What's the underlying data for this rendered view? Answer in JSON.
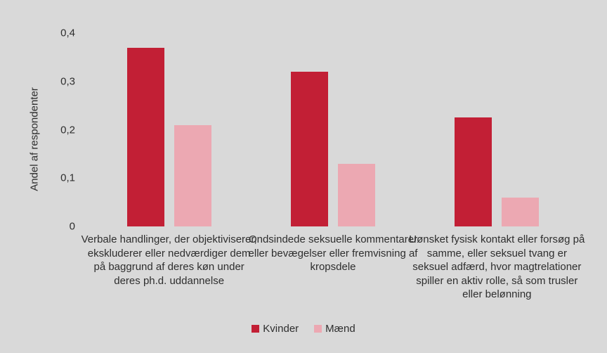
{
  "background_color": "#d9d9d9",
  "text_color": "#2e2e2e",
  "chart_data": {
    "type": "bar",
    "title": "",
    "xlabel": "",
    "ylabel": "Andel af respondenter",
    "ylim": [
      0,
      0.4
    ],
    "grid": false,
    "legend_position": "bottom",
    "yticks": [
      {
        "value": 0,
        "label": "0"
      },
      {
        "value": 0.1,
        "label": "0,1"
      },
      {
        "value": 0.2,
        "label": "0,2"
      },
      {
        "value": 0.3,
        "label": "0,3"
      },
      {
        "value": 0.4,
        "label": "0,4"
      }
    ],
    "categories": [
      "Verbale handlinger, der objektiviserer, ekskluderer eller nedværdiger dem på baggrund af deres køn under deres ph.d. uddannelse",
      "Ondsindede seksuelle kommentarer eller bevægelser eller fremvisning af kropsdele",
      "Uønsket fysisk kontakt eller forsøg på samme, eller seksuel tvang er seksuel adfærd, hvor magtrelationer spiller en aktiv rolle, så som trusler eller belønning"
    ],
    "series": [
      {
        "name": "Kvinder",
        "color": "#c21f35",
        "values": [
          0.37,
          0.32,
          0.225
        ]
      },
      {
        "name": "Mænd",
        "color": "#eca8b2",
        "values": [
          0.21,
          0.13,
          0.06
        ]
      }
    ]
  }
}
